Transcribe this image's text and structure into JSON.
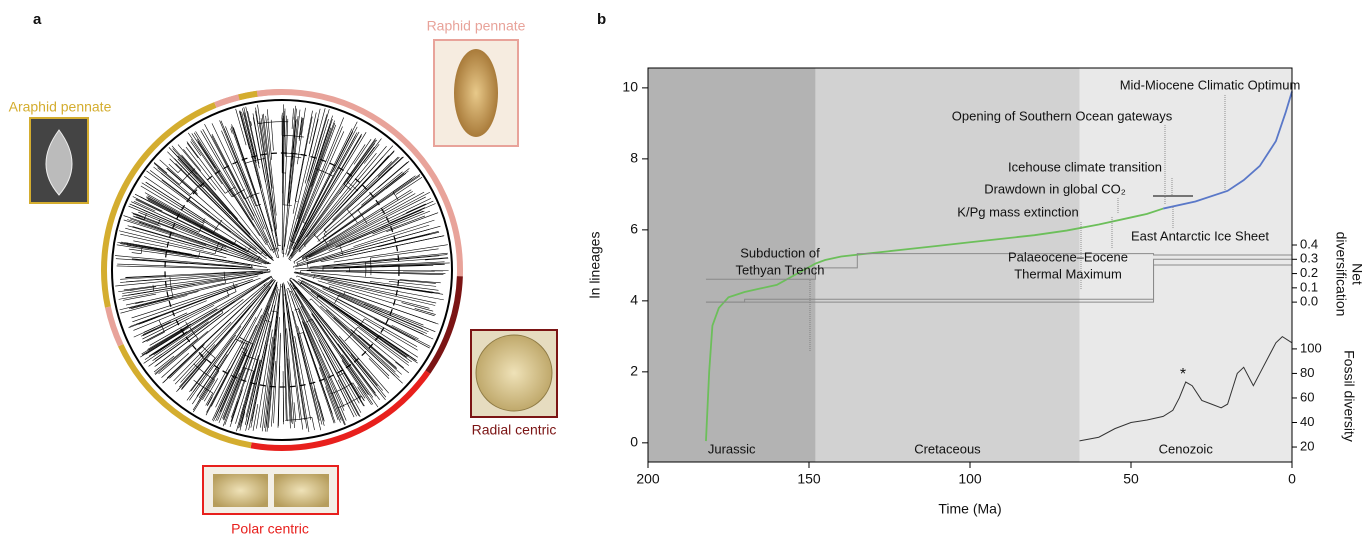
{
  "panel_a": {
    "label": "a",
    "clades": [
      "Raphid pennate",
      "Araphid pennate",
      "Radial centric",
      "Polar centric"
    ]
  },
  "chart_data": {
    "type": "line",
    "label": "b",
    "xlabel": "Time (Ma)",
    "ylabel": "ln lineages",
    "y2label": [
      "Net",
      "diversification"
    ],
    "y3label": "Fossil diversity",
    "xlim": [
      200,
      0
    ],
    "xticks": [
      200,
      150,
      100,
      50,
      0
    ],
    "ylim": [
      -0.54,
      10.56
    ],
    "yticks": [
      0,
      2,
      4,
      6,
      8,
      10
    ],
    "y2lim": [
      -1.12,
      1.64
    ],
    "y2ticks": [
      {
        "value": 0,
        "label": "0.0"
      },
      0.1,
      0.2,
      0.3,
      0.4
    ],
    "y3lim": [
      7.8,
      329
    ],
    "y3ticks": [
      20,
      40,
      60,
      80,
      100
    ],
    "periods": [
      {
        "name": "Jurassic",
        "start": 200,
        "end": 148,
        "color": "#b3b3b3"
      },
      {
        "name": "Cretaceous",
        "start": 148,
        "end": 66,
        "color": "#d2d2d2"
      },
      {
        "name": "Cenozoic",
        "start": 66,
        "end": 0,
        "color": "#e9e9e9"
      }
    ],
    "series": [
      {
        "color": "#6cbf5a",
        "axis": "y",
        "x": [
          182,
          181,
          180,
          178,
          175,
          170,
          165,
          160,
          155,
          150,
          148,
          145,
          140,
          130,
          120,
          110,
          100,
          90,
          80,
          70,
          60,
          50,
          45,
          40
        ],
        "values": [
          0.05,
          2,
          3.3,
          3.8,
          4.1,
          4.25,
          4.35,
          4.45,
          4.7,
          4.95,
          5.05,
          5.15,
          5.25,
          5.35,
          5.45,
          5.55,
          5.65,
          5.75,
          5.85,
          5.98,
          6.15,
          6.35,
          6.45,
          6.6
        ]
      },
      {
        "color": "#5a78c8",
        "axis": "y",
        "x": [
          40,
          30,
          20,
          15,
          10,
          5,
          2,
          0
        ],
        "values": [
          6.6,
          6.8,
          7.1,
          7.4,
          7.8,
          8.5,
          9.3,
          9.9
        ]
      },
      {
        "color": "#8a8a8a",
        "axis": "y2",
        "x": [
          182,
          148,
          148,
          135,
          135,
          43,
          43,
          0
        ],
        "values": [
          0.16,
          0.16,
          0.24,
          0.24,
          0.34,
          0.34,
          0.33,
          0.33
        ]
      },
      {
        "color": "#8a8a8a",
        "axis": "y2",
        "x": [
          182,
          170,
          170,
          43,
          43,
          0
        ],
        "values": [
          0.0,
          0.0,
          0.02,
          0.02,
          0.3,
          0.3
        ]
      },
      {
        "color": "#8a8a8a",
        "axis": "y2",
        "x": [
          182,
          43,
          43,
          0
        ],
        "values": [
          0.0,
          0.0,
          0.26,
          0.26
        ]
      },
      {
        "color": "#333333",
        "axis": "y3",
        "x": [
          66,
          60,
          55,
          50,
          45,
          40,
          37,
          35,
          33,
          31,
          28,
          25,
          22,
          20,
          17,
          15,
          12,
          10,
          7,
          5,
          3,
          0
        ],
        "values": [
          25,
          28,
          35,
          40,
          42,
          45,
          50,
          60,
          73,
          70,
          58,
          55,
          52,
          55,
          80,
          85,
          70,
          80,
          95,
          105,
          110,
          105
        ]
      }
    ],
    "annotations": [
      [
        "Subduction of",
        "Tethyan Trench"
      ],
      [
        "K/Pg mass extinction"
      ],
      [
        "Drawdown in global CO₂"
      ],
      [
        "Icehouse climate transition"
      ],
      [
        "Opening of Southern Ocean gateways"
      ],
      [
        "Mid-Miocene Climatic Optimum"
      ],
      [
        "East Antarctic Ice Sheet"
      ],
      [
        "Palaeocene–Eocene",
        "Thermal Maximum"
      ],
      [
        "*"
      ]
    ]
  }
}
